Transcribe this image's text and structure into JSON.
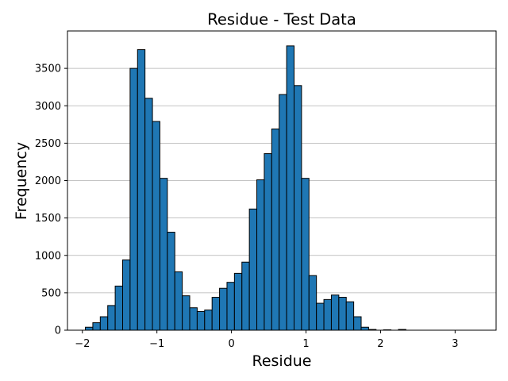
{
  "chart_data": {
    "type": "bar",
    "title": "Residue - Test Data",
    "xlabel": "Residue",
    "ylabel": "Frequency",
    "xlim": [
      -2.2,
      3.55
    ],
    "ylim": [
      0,
      4000
    ],
    "xticks": [
      -2,
      -1,
      0,
      1,
      2,
      3
    ],
    "xtick_labels": [
      "−2",
      "−1",
      "0",
      "1",
      "2",
      "3"
    ],
    "yticks": [
      0,
      500,
      1000,
      1500,
      2000,
      2500,
      3000,
      3500
    ],
    "ytick_labels": [
      "0",
      "500",
      "1000",
      "1500",
      "2000",
      "2500",
      "3000",
      "3500"
    ],
    "grid": "y-major",
    "bar_color": "#1f77b4",
    "edge_color": "#000000",
    "bin_start": -1.96,
    "bin_width": 0.1,
    "values": [
      40,
      100,
      180,
      330,
      590,
      940,
      3500,
      3750,
      3100,
      2790,
      2030,
      1310,
      780,
      460,
      300,
      250,
      270,
      440,
      560,
      640,
      760,
      910,
      1620,
      2010,
      2360,
      2690,
      3150,
      3800,
      3270,
      2030,
      730,
      360,
      410,
      470,
      440,
      380,
      180,
      40,
      10,
      0,
      5,
      0,
      10,
      0,
      0,
      0,
      0,
      0,
      0,
      0,
      0,
      0,
      0
    ]
  }
}
